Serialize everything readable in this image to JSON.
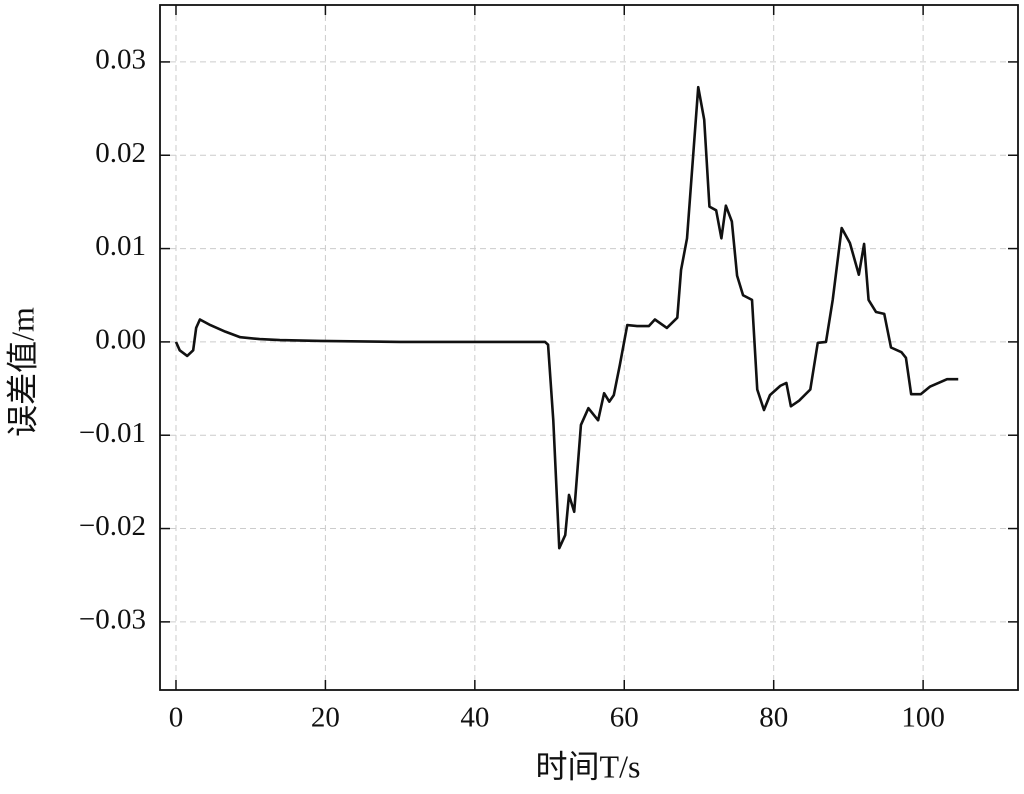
{
  "chart_data": {
    "type": "line",
    "xlabel": "时间T/s",
    "ylabel": "误差值/m",
    "x": [
      0,
      0.5,
      1.5,
      2.3,
      2.7,
      3.2,
      4.6,
      6.6,
      8.6,
      11.2,
      13.9,
      19.3,
      30,
      49.4,
      49.8,
      50.5,
      51.3,
      52.1,
      52.6,
      53.3,
      54.2,
      55.2,
      56.5,
      57.3,
      58,
      58.6,
      59.4,
      60.4,
      61.7,
      63.3,
      64.1,
      65.7,
      67.1,
      67.6,
      68.4,
      69.9,
      70.7,
      71.4,
      72.3,
      73,
      73.6,
      74.4,
      75.1,
      75.9,
      77.1,
      77.8,
      78.7,
      79.5,
      80.9,
      81.7,
      82.3,
      83.4,
      84.9,
      85.9,
      87,
      87.9,
      89.1,
      90.2,
      91.4,
      92.1,
      92.7,
      93.7,
      94.8,
      95.7,
      97.1,
      97.7,
      98.4,
      99.7,
      100.9,
      103.2,
      104.7
    ],
    "series": [
      {
        "color": "#111111",
        "values": [
          0,
          -0.0009,
          -0.0015,
          -0.0009,
          0.0015,
          0.0024,
          0.0018,
          0.0011,
          0.0005,
          0.0003,
          0.0002,
          0.0001,
          0,
          0,
          -0.0003,
          -0.0084,
          -0.0221,
          -0.0207,
          -0.0164,
          -0.0182,
          -0.0089,
          -0.0071,
          -0.0084,
          -0.0055,
          -0.0064,
          -0.0057,
          -0.0025,
          0.0018,
          0.0017,
          0.0017,
          0.0024,
          0.0015,
          0.0026,
          0.0077,
          0.0111,
          0.0273,
          0.0238,
          0.0145,
          0.0141,
          0.0111,
          0.0146,
          0.0129,
          0.0071,
          0.005,
          0.0045,
          -0.0051,
          -0.0073,
          -0.0057,
          -0.0047,
          -0.0044,
          -0.0069,
          -0.0063,
          -0.0051,
          -0.0001,
          0,
          0.0045,
          0.0122,
          0.0106,
          0.0072,
          0.0105,
          0.0045,
          0.0032,
          0.003,
          -0.0006,
          -0.0011,
          -0.0017,
          -0.0056,
          -0.0056,
          -0.0048,
          -0.004,
          -0.004
        ]
      }
    ],
    "xlim": [
      -2.14,
      112.7
    ],
    "xticks": [
      0,
      20,
      40,
      60,
      80,
      100
    ],
    "ylim": [
      -0.0373,
      0.0361
    ],
    "yticks": [
      {
        "value": -0.03,
        "label": "−0.03"
      },
      {
        "value": -0.02,
        "label": "−0.02"
      },
      {
        "value": -0.01,
        "label": "−0.01"
      },
      {
        "value": 0,
        "label": "0.00"
      },
      0.01,
      0.02,
      0.03
    ],
    "grid": true
  }
}
